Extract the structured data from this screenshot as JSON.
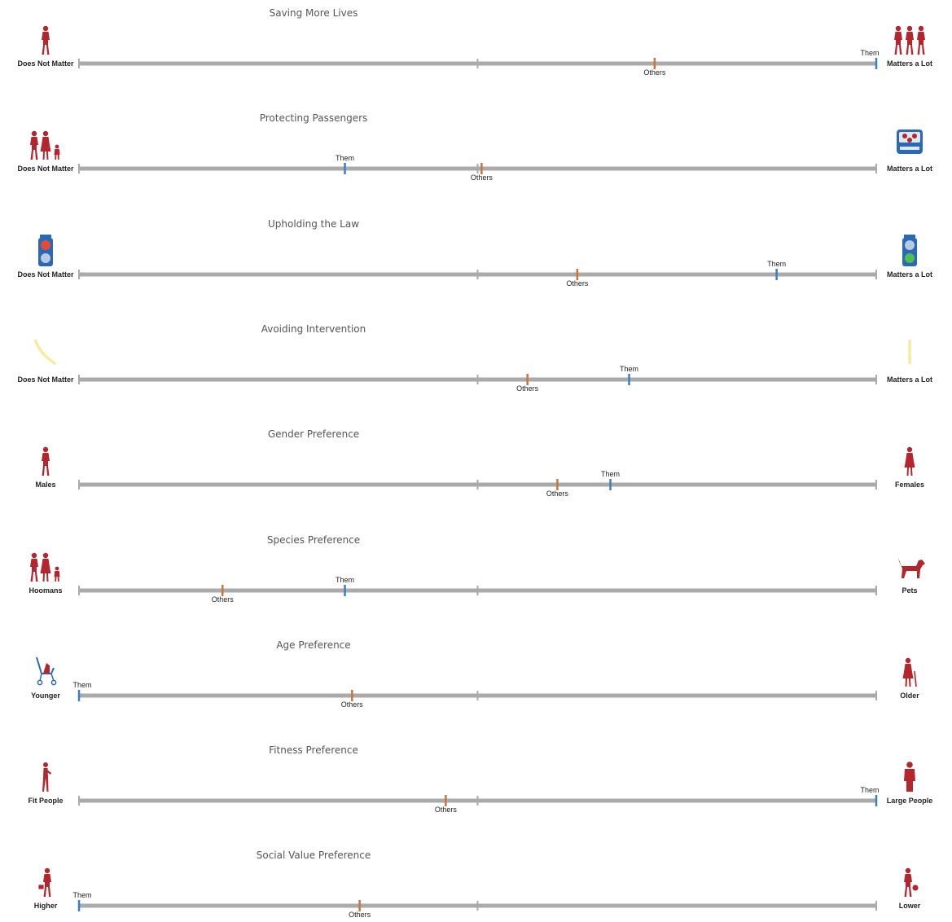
{
  "chart_data": {
    "type": "slider-comparison",
    "marker_names": {
      "them": "Them",
      "others": "Others"
    },
    "colors": {
      "them": "#3d7dc7",
      "others": "#c8753a",
      "track": "#aaaaaa",
      "icon_red": "#b3262e",
      "icon_blue": "#2a6ab5",
      "icon_yellow": "#f5ec9e"
    },
    "scale": [
      -1,
      1
    ],
    "rows": [
      {
        "title": "Saving More Lives",
        "left": "Does Not Matter",
        "right": "Matters a Lot",
        "them": 1.0,
        "others": 0.444,
        "left_icon": "single-person-icon",
        "right_icon": "three-people-icon"
      },
      {
        "title": "Protecting Passengers",
        "left": "Does Not Matter",
        "right": "Matters a Lot",
        "them": -0.333,
        "others": 0.01,
        "left_icon": "family-group-icon",
        "right_icon": "car-passengers-icon"
      },
      {
        "title": "Upholding the Law",
        "left": "Does Not Matter",
        "right": "Matters a Lot",
        "them": 0.75,
        "others": 0.25,
        "left_icon": "dont-walk-signal-icon",
        "right_icon": "walk-signal-icon"
      },
      {
        "title": "Avoiding Intervention",
        "left": "Does Not Matter",
        "right": "Matters a Lot",
        "them": 0.38,
        "others": 0.125,
        "left_icon": "curved-path-icon",
        "right_icon": "straight-path-icon"
      },
      {
        "title": "Gender Preference",
        "left": "Males",
        "right": "Females",
        "them": 0.333,
        "others": 0.2,
        "left_icon": "male-icon",
        "right_icon": "female-icon"
      },
      {
        "title": "Species Preference",
        "left": "Hoomans",
        "right": "Pets",
        "them": -0.333,
        "others": -0.64,
        "left_icon": "family-group-icon",
        "right_icon": "dog-icon"
      },
      {
        "title": "Age Preference",
        "left": "Younger",
        "right": "Older",
        "them": -1.0,
        "others": -0.315,
        "left_icon": "stroller-icon",
        "right_icon": "elderly-person-icon"
      },
      {
        "title": "Fitness Preference",
        "left": "Fit People",
        "right": "Large People",
        "them": 1.0,
        "others": -0.08,
        "left_icon": "athlete-icon",
        "right_icon": "large-person-icon"
      },
      {
        "title": "Social Value Preference",
        "left": "Higher",
        "right": "Lower",
        "them": -1.0,
        "others": -0.296,
        "left_icon": "doctor-icon",
        "right_icon": "criminal-icon"
      }
    ]
  }
}
